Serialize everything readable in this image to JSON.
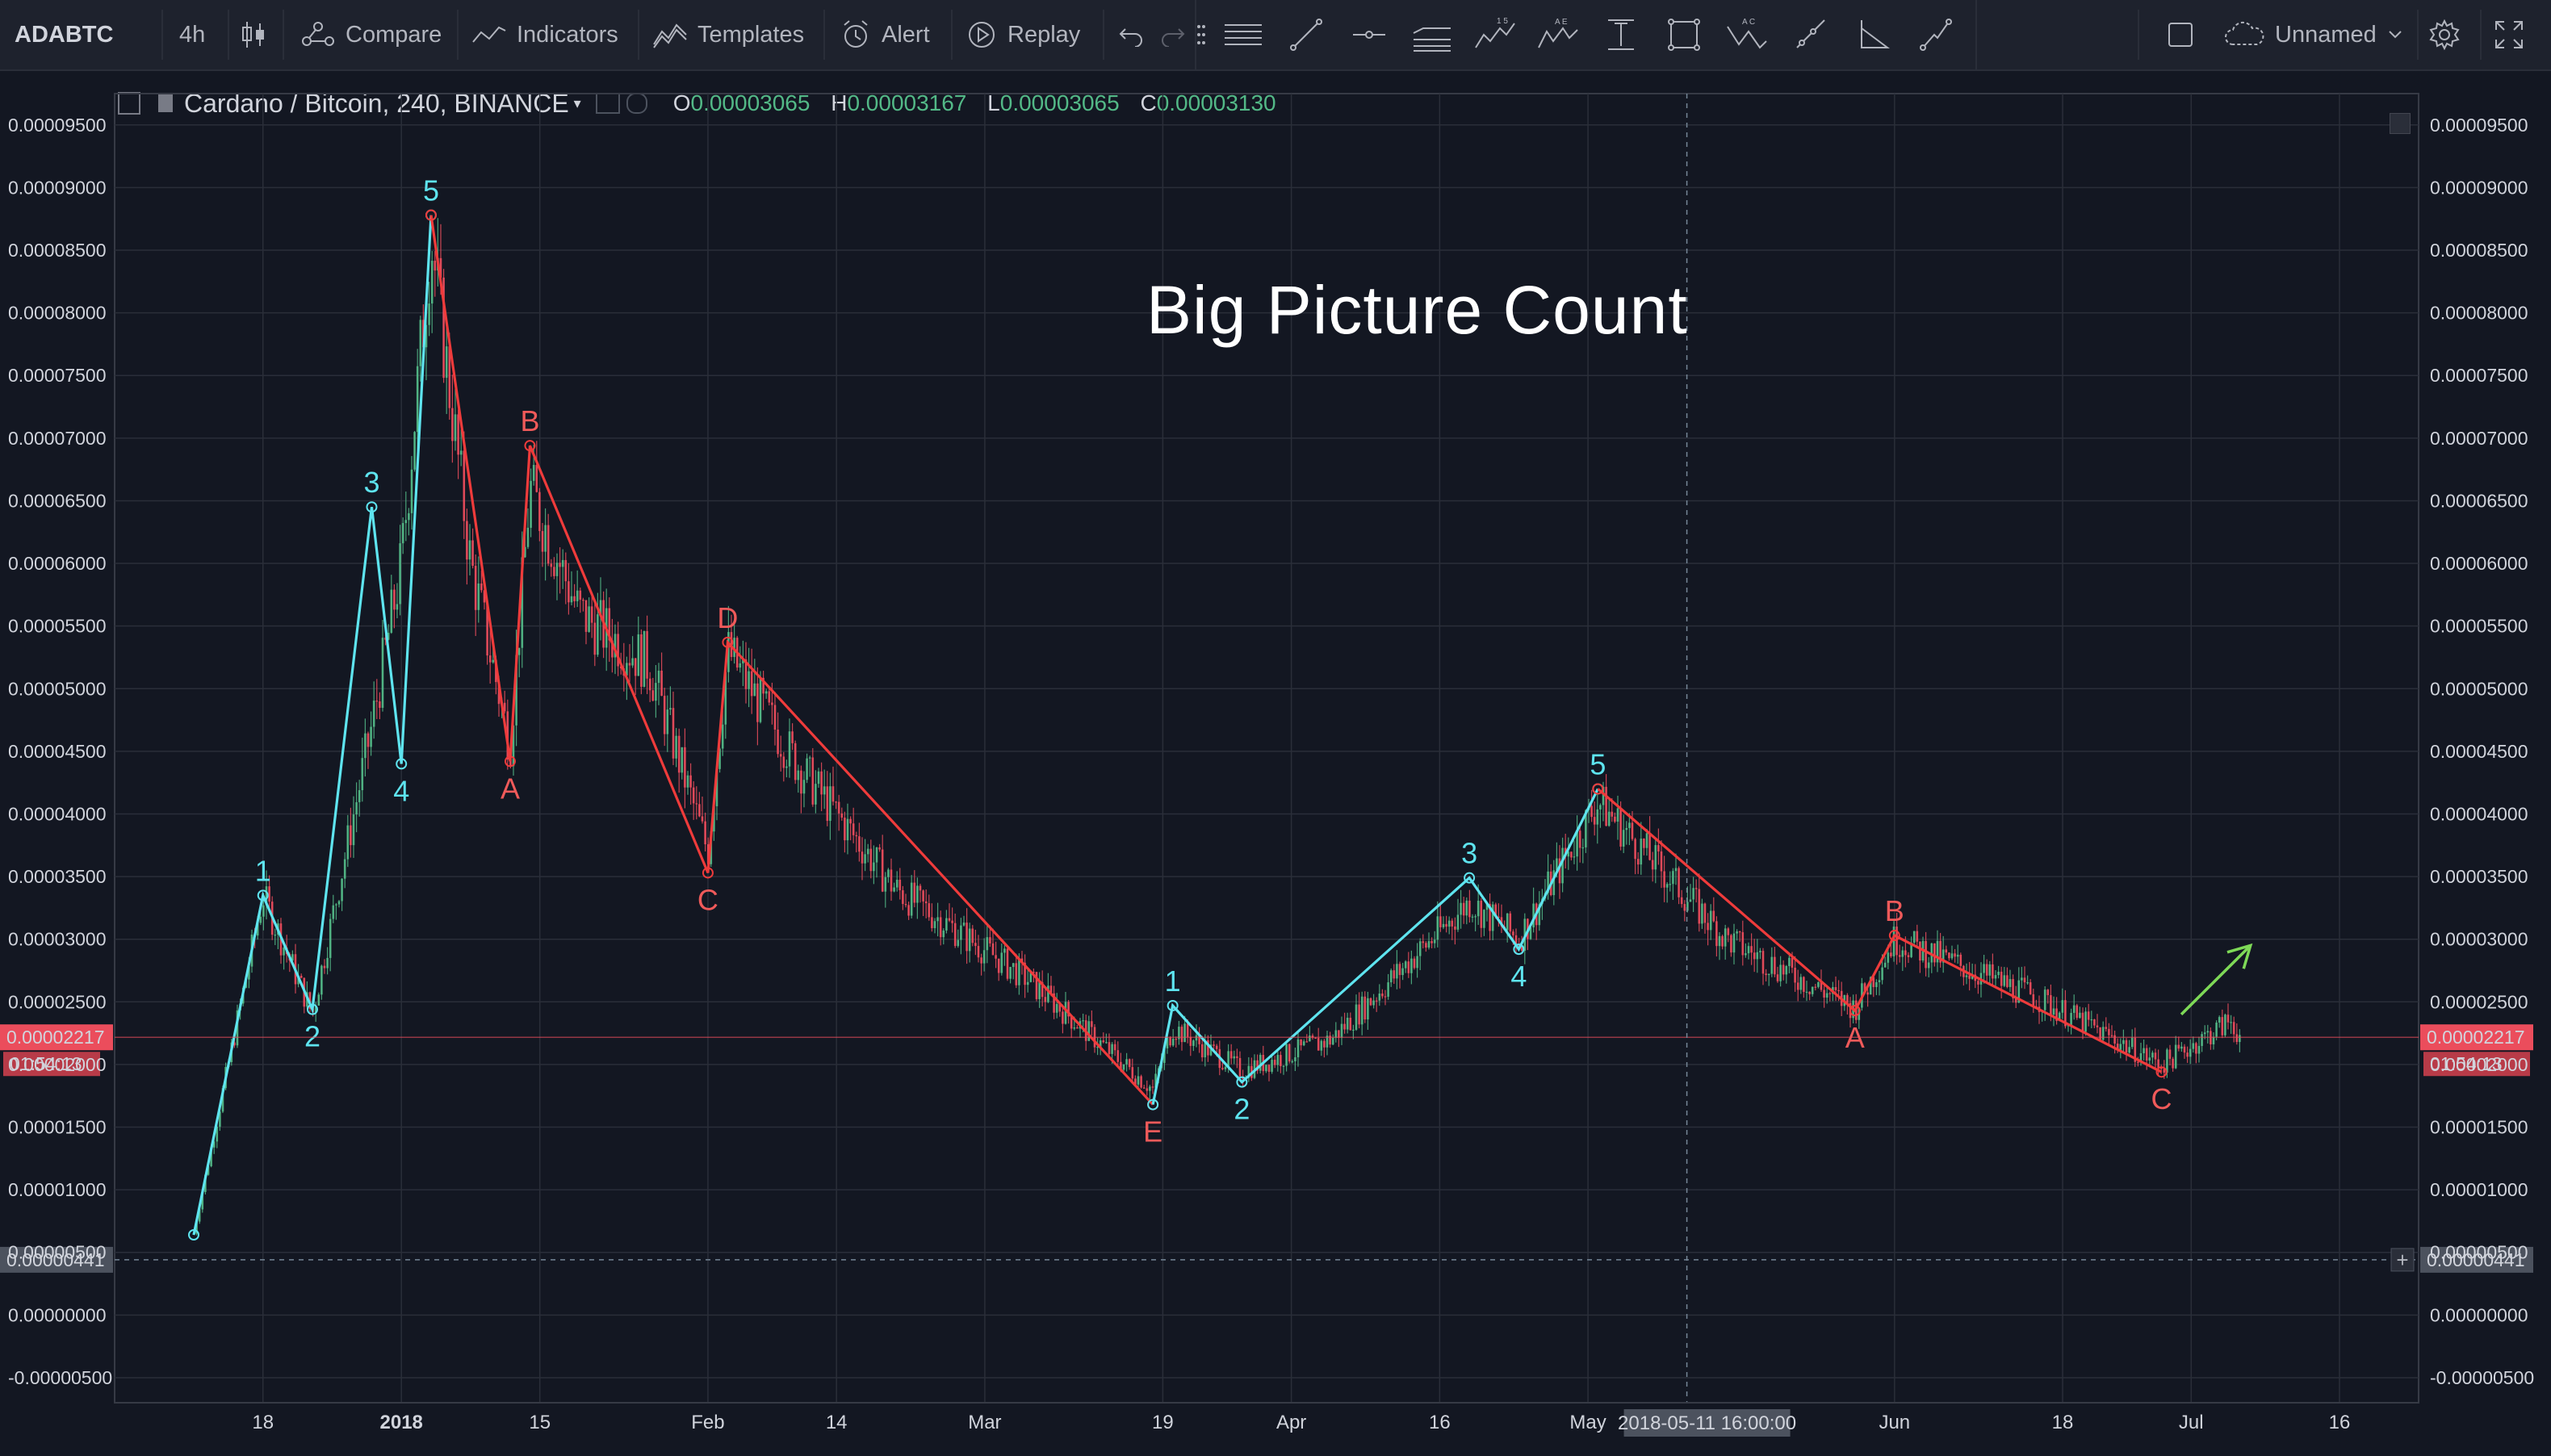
{
  "toolbar": {
    "symbol": "ADABTC",
    "interval": "4h",
    "compare": "Compare",
    "indicators": "Indicators",
    "templates": "Templates",
    "alert": "Alert",
    "replay": "Replay",
    "layout_name": "Unnamed"
  },
  "legend": {
    "title": "Cardano / Bitcoin, 240, BINANCE",
    "o_key": "O",
    "o_val": "0.00003065",
    "h_key": "H",
    "h_val": "0.00003167",
    "l_key": "L",
    "l_val": "0.00003065",
    "c_key": "C",
    "c_val": "0.00003130"
  },
  "annotation_title": "Big Picture Count",
  "price_axis": {
    "ticks": [
      "0.00009500",
      "0.00009000",
      "0.00008500",
      "0.00008000",
      "0.00007500",
      "0.00007000",
      "0.00006500",
      "0.00006000",
      "0.00005500",
      "0.00005000",
      "0.00004500",
      "0.00004000",
      "0.00003500",
      "0.00003000",
      "0.00002500",
      "0.00002000",
      "0.00001500",
      "0.00001000",
      "0.00000500",
      "0.00000000",
      "-0.00000500"
    ],
    "current_price": "0.00002217",
    "countdown": "01:54:13",
    "crosshair_price": "0.00000441"
  },
  "time_axis": {
    "ticks": [
      "18",
      "2018",
      "15",
      "Feb",
      "14",
      "Mar",
      "19",
      "Apr",
      "16",
      "May",
      "Jun",
      "18",
      "Jul",
      "16"
    ],
    "crosshair_time": "2018-05-11 16:00:00"
  },
  "colors": {
    "background": "#131722",
    "impulse": "#5ee4ef",
    "corrective": "#ef3b3b",
    "corrective_label": "#f05a5a",
    "projection": "#7ed957",
    "up_candle": "#53b987",
    "down_candle": "#eb4d5c"
  },
  "chart_data": {
    "type": "line",
    "ylim": [
      -7e-06,
      9.75e-05
    ],
    "x": [
      "2017-12-11",
      "2017-12-18",
      "2017-12-23",
      "2017-12-29",
      "2018-01-01",
      "2018-01-04",
      "2018-01-08",
      "2018-01-12",
      "2018-01-14",
      "2018-01-19",
      "2018-01-26",
      "2018-02-01",
      "2018-02-03",
      "2018-02-10",
      "2018-02-20",
      "2018-03-05",
      "2018-03-18",
      "2018-03-20",
      "2018-03-27",
      "2018-04-05",
      "2018-04-19",
      "2018-04-24",
      "2018-05-02",
      "2018-05-15",
      "2018-05-28",
      "2018-06-01",
      "2018-06-15",
      "2018-06-28",
      "2018-07-05",
      "2018-07-06"
    ],
    "price_path": [
      6.5e-06,
      3.35e-05,
      2.4e-05,
      4.7e-05,
      6e-05,
      8.6e-05,
      6e-05,
      4.55e-05,
      6.6e-05,
      5.6e-05,
      5.2e-05,
      3.7e-05,
      5.3e-05,
      4.4e-05,
      3.4e-05,
      2.7e-05,
      1.8e-05,
      2.3e-05,
      1.95e-05,
      2.2e-05,
      3.3e-05,
      3e-05,
      4.1e-05,
      3e-05,
      2.45e-05,
      3e-05,
      2.55e-05,
      2e-05,
      2.35e-05,
      2.22e-05
    ],
    "waves": [
      {
        "wave": "impulse-1",
        "points": [
          {
            "label": "",
            "x": "2017-12-11",
            "y": 6.4e-06
          },
          {
            "label": "1",
            "x": "2017-12-18",
            "y": 3.35e-05
          },
          {
            "label": "2",
            "x": "2017-12-23",
            "y": 2.44e-05
          },
          {
            "label": "3",
            "x": "2017-12-29",
            "y": 6.45e-05
          },
          {
            "label": "4",
            "x": "2018-01-01",
            "y": 4.4e-05
          },
          {
            "label": "5",
            "x": "2018-01-04",
            "y": 8.78e-05
          }
        ]
      },
      {
        "wave": "correction-1",
        "points": [
          {
            "label": "",
            "x": "2018-01-04",
            "y": 8.78e-05
          },
          {
            "label": "A",
            "x": "2018-01-12",
            "y": 4.42e-05
          },
          {
            "label": "B",
            "x": "2018-01-14",
            "y": 6.94e-05
          },
          {
            "label": "C",
            "x": "2018-02-01",
            "y": 3.53e-05
          },
          {
            "label": "D",
            "x": "2018-02-03",
            "y": 5.37e-05
          },
          {
            "label": "E",
            "x": "2018-03-18",
            "y": 1.68e-05
          }
        ]
      },
      {
        "wave": "impulse-2",
        "points": [
          {
            "label": "",
            "x": "2018-03-18",
            "y": 1.68e-05
          },
          {
            "label": "1",
            "x": "2018-03-20",
            "y": 2.47e-05
          },
          {
            "label": "2",
            "x": "2018-03-27",
            "y": 1.86e-05
          },
          {
            "label": "3",
            "x": "2018-04-19",
            "y": 3.49e-05
          },
          {
            "label": "4",
            "x": "2018-04-24",
            "y": 2.92e-05
          },
          {
            "label": "5",
            "x": "2018-05-02",
            "y": 4.2e-05
          }
        ]
      },
      {
        "wave": "correction-2",
        "points": [
          {
            "label": "",
            "x": "2018-05-02",
            "y": 4.2e-05
          },
          {
            "label": "A",
            "x": "2018-05-28",
            "y": 2.43e-05
          },
          {
            "label": "B",
            "x": "2018-06-01",
            "y": 3.03e-05
          },
          {
            "label": "C",
            "x": "2018-06-28",
            "y": 1.94e-05
          }
        ]
      }
    ],
    "projection": {
      "direction": "up",
      "from": {
        "x": "2018-06-30",
        "y": 2.4e-05
      },
      "to": {
        "x": "2018-07-07",
        "y": 2.95e-05
      }
    }
  }
}
